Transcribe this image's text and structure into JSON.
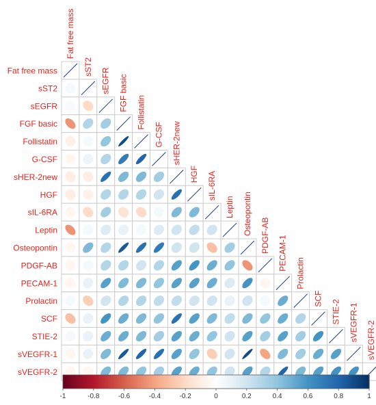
{
  "chart_data": {
    "type": "heatmap",
    "subtype": "correlation-ellipse-lower-triangle",
    "variables": [
      "Fat free mass",
      "sST2",
      "sEGFR",
      "FGF basic",
      "Follistatin",
      "G-CSF",
      "sHER-2new",
      "HGF",
      "sIL-6RA",
      "Leptin",
      "Osteopontin",
      "PDGF-AB",
      "PECAM-1",
      "Prolactin",
      "SCF",
      "STIE-2",
      "sVEGFR-1",
      "sVEGFR-2"
    ],
    "matrix_lower": [
      [],
      [
        0.05
      ],
      [
        0.03,
        -0.2
      ],
      [
        -0.45,
        0.3,
        0.35
      ],
      [
        -0.08,
        0.05,
        0.4,
        0.9
      ],
      [
        -0.05,
        0.08,
        0.3,
        0.7,
        0.8
      ],
      [
        -0.1,
        -0.1,
        0.75,
        0.45,
        0.45,
        0.35
      ],
      [
        -0.1,
        -0.08,
        0.3,
        0.3,
        0.3,
        0.2,
        0.75
      ],
      [
        -0.05,
        -0.2,
        0.35,
        -0.15,
        -0.2,
        0.05,
        0.45,
        0.45
      ],
      [
        -0.45,
        0.05,
        0.15,
        0.1,
        0.05,
        0.15,
        0.2,
        0.25,
        0.2
      ],
      [
        -0.05,
        0.45,
        0.3,
        0.85,
        0.75,
        0.7,
        0.2,
        0.2,
        -0.3,
        0.35
      ],
      [
        -0.05,
        0.05,
        0.3,
        0.3,
        0.2,
        0.3,
        0.55,
        0.6,
        0.5,
        0.4,
        -0.45
      ],
      [
        -0.05,
        0.1,
        0.55,
        0.45,
        0.45,
        0.4,
        0.55,
        0.55,
        0.5,
        0.15,
        0.6,
        -0.05
      ],
      [
        0.05,
        -0.25,
        0.2,
        0.3,
        0.3,
        0.25,
        0.25,
        0.2,
        0.2,
        0.1,
        0.2,
        0.05,
        0.5
      ],
      [
        -0.3,
        0.1,
        0.6,
        0.5,
        0.45,
        0.4,
        0.75,
        0.55,
        0.45,
        0.25,
        0.45,
        0.4,
        0.5,
        0.3
      ],
      [
        0.05,
        0.1,
        0.5,
        0.5,
        0.45,
        0.35,
        0.55,
        0.5,
        0.4,
        0.2,
        0.55,
        0.35,
        0.55,
        0.35,
        0.6
      ],
      [
        -0.05,
        0.1,
        0.45,
        0.85,
        0.8,
        0.75,
        0.55,
        0.4,
        -0.25,
        0.2,
        0.9,
        -0.4,
        0.45,
        0.35,
        0.5,
        0.55
      ],
      [
        -0.05,
        -0.05,
        0.45,
        0.45,
        0.4,
        0.35,
        0.55,
        0.5,
        0.4,
        0.2,
        0.55,
        0.3,
        0.8,
        0.45,
        0.55,
        0.6,
        0.6
      ]
    ],
    "color_scale": {
      "min": -1,
      "max": 1,
      "tick_labels": [
        "-1",
        "-0.8",
        "-0.6",
        "-0.4",
        "-0.2",
        "0",
        "0.2",
        "0.4",
        "0.6",
        "0.8",
        "1"
      ],
      "stops": [
        "#67001F",
        "#B2182B",
        "#D6604D",
        "#F4A582",
        "#FDDBC7",
        "#FFFFFF",
        "#D1E5F0",
        "#92C5DE",
        "#4393C3",
        "#2166AC",
        "#053061"
      ]
    },
    "label_color": "#E8231B",
    "diagonal_line_color": "#1A3B8C",
    "grid_color": "#CCCCCC"
  }
}
